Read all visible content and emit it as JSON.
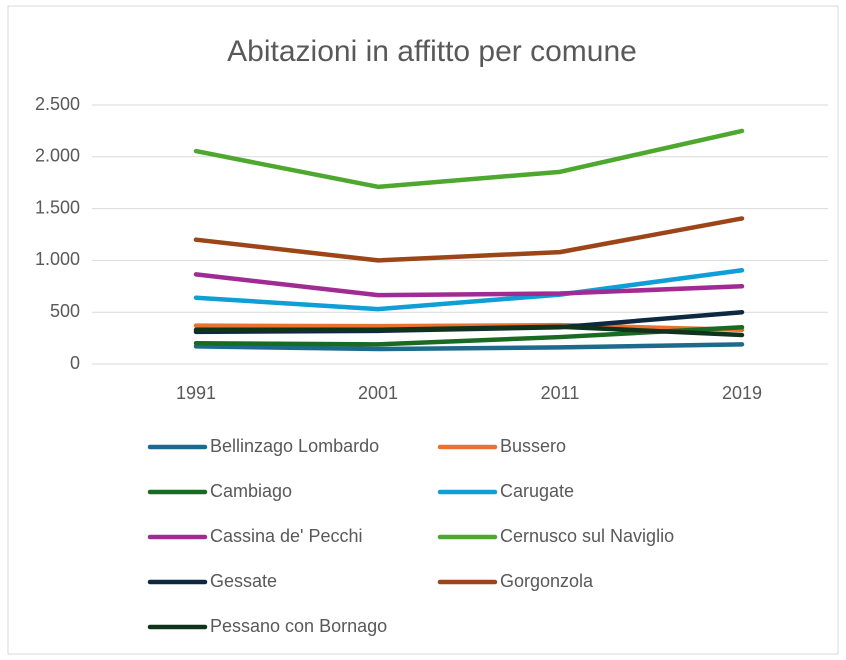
{
  "chart_data": {
    "type": "line",
    "title": "Abitazioni in affitto per comune",
    "categories": [
      "1991",
      "2001",
      "2011",
      "2019"
    ],
    "series": [
      {
        "name": "Bellinzago Lombardo",
        "color": "#1e6a8d",
        "values": [
          170,
          145,
          160,
          190
        ]
      },
      {
        "name": "Bussero",
        "color": "#e97132",
        "values": [
          370,
          365,
          375,
          330
        ]
      },
      {
        "name": "Cambiago",
        "color": "#196b24",
        "values": [
          200,
          190,
          260,
          355
        ]
      },
      {
        "name": "Carugate",
        "color": "#0f9ed5",
        "values": [
          640,
          530,
          670,
          905
        ]
      },
      {
        "name": "Cassina de' Pecchi",
        "color": "#a02b93",
        "values": [
          865,
          665,
          680,
          750
        ]
      },
      {
        "name": "Cernusco sul Naviglio",
        "color": "#4ea72e",
        "values": [
          2055,
          1710,
          1855,
          2250
        ]
      },
      {
        "name": "Gessate",
        "color": "#0e2841",
        "values": [
          310,
          320,
          355,
          500
        ]
      },
      {
        "name": "Gorgonzola",
        "color": "#9c4518",
        "values": [
          1200,
          1000,
          1080,
          1405
        ]
      },
      {
        "name": "Pessano con Bornago",
        "color": "#10331b",
        "values": [
          330,
          330,
          360,
          280
        ]
      }
    ],
    "ylim": [
      0,
      2500
    ],
    "yticks": [
      0,
      500,
      {
        "value": 1000,
        "label": "1.000"
      },
      {
        "value": 1500,
        "label": "1.500"
      },
      {
        "value": 2000,
        "label": "2.000"
      },
      {
        "value": 2500,
        "label": "2.500"
      }
    ],
    "grid": true,
    "legend": "bottom"
  }
}
